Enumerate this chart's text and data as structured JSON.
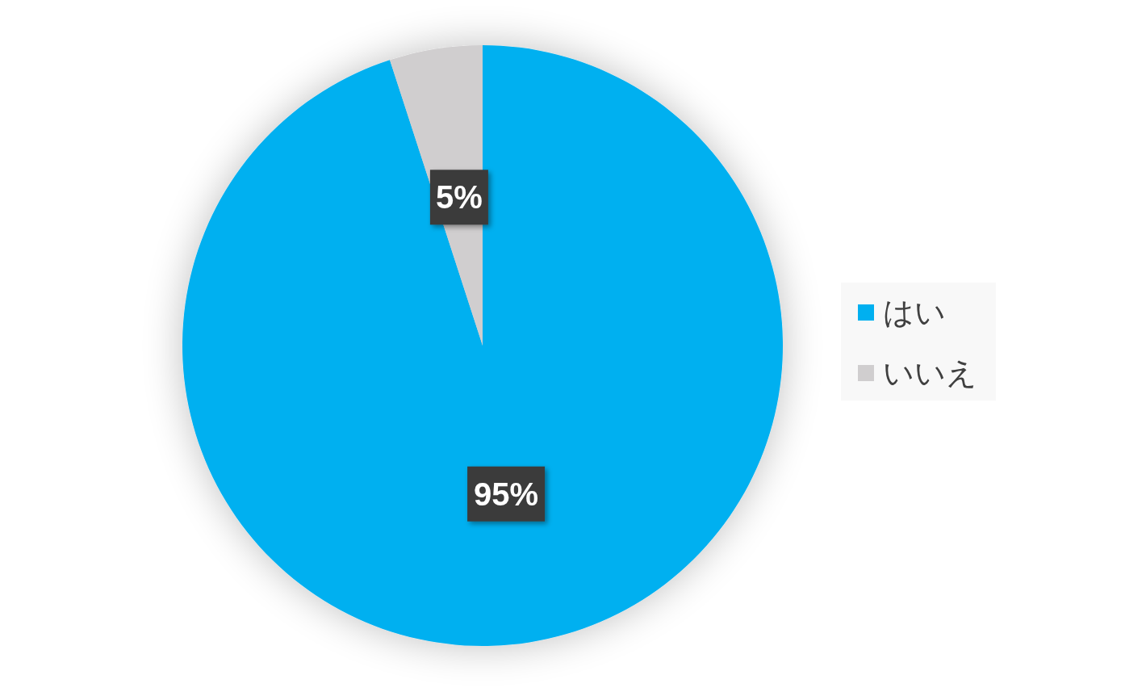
{
  "chart_data": {
    "type": "pie",
    "categories": [
      "はい",
      "いいえ"
    ],
    "values": [
      95,
      5
    ],
    "colors": [
      "#00b0f0",
      "#d0cecf"
    ],
    "value_labels": [
      "95%",
      "5%"
    ],
    "legend": "right"
  }
}
